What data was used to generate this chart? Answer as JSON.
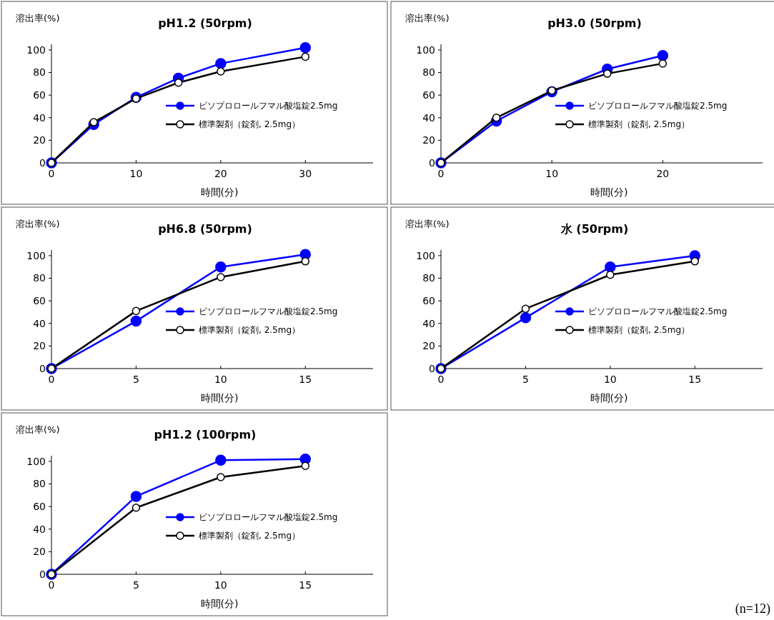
{
  "chart_data": [
    {
      "type": "line",
      "title": "pH1.2 (50rpm)",
      "xlabel": "時間(分)",
      "ylabel": "溶出率(%)",
      "xlim": [
        0,
        38
      ],
      "xticks": [
        0,
        10,
        20,
        30
      ],
      "ylim": [
        0,
        105
      ],
      "yticks": [
        0,
        20,
        40,
        60,
        80,
        100
      ],
      "marker": "circle",
      "legend": "bottom right",
      "x": [
        0,
        5,
        10,
        15,
        20,
        30
      ],
      "series": [
        {
          "name": "ビソプロロールフマル酸塩錠2.5mg",
          "color": "#0000ff",
          "values": [
            0,
            34,
            58,
            75,
            88,
            102
          ]
        },
        {
          "name": "標準製剤（錠剤, 2.5mg）",
          "color": "#000000",
          "values": [
            0,
            36,
            57,
            71,
            81,
            94
          ]
        }
      ]
    },
    {
      "type": "line",
      "title": "pH3.0 (50rpm)",
      "xlabel": "時間(分)",
      "ylabel": "溶出率(%)",
      "xlim": [
        0,
        29
      ],
      "xticks": [
        0,
        10,
        20
      ],
      "ylim": [
        0,
        105
      ],
      "yticks": [
        0,
        20,
        40,
        60,
        80,
        100
      ],
      "marker": "circle",
      "legend": "bottom right",
      "x": [
        0,
        5,
        10,
        15,
        20
      ],
      "series": [
        {
          "name": "ビソプロロールフマル酸塩錠2.5mg",
          "color": "#0000ff",
          "values": [
            0,
            37,
            63,
            83,
            95
          ]
        },
        {
          "name": "標準製剤（錠剤, 2.5mg）",
          "color": "#000000",
          "values": [
            0,
            40,
            64,
            79,
            88
          ]
        }
      ]
    },
    {
      "type": "line",
      "title": "pH6.8 (50rpm)",
      "xlabel": "時間(分)",
      "ylabel": "溶出率(%)",
      "xlim": [
        0,
        19
      ],
      "xticks": [
        0,
        5,
        10,
        15
      ],
      "ylim": [
        0,
        105
      ],
      "yticks": [
        0,
        20,
        40,
        60,
        80,
        100
      ],
      "marker": "circle",
      "legend": "bottom right",
      "x": [
        0,
        5,
        10,
        15
      ],
      "series": [
        {
          "name": "ビソプロロールフマル酸塩錠2.5mg",
          "color": "#0000ff",
          "values": [
            0,
            42,
            90,
            101
          ]
        },
        {
          "name": "標準製剤（錠剤, 2.5mg）",
          "color": "#000000",
          "values": [
            0,
            51,
            81,
            95
          ]
        }
      ]
    },
    {
      "type": "line",
      "title": "水 (50rpm)",
      "xlabel": "時間(分)",
      "ylabel": "溶出率(%)",
      "xlim": [
        0,
        19
      ],
      "xticks": [
        0,
        5,
        10,
        15
      ],
      "ylim": [
        0,
        105
      ],
      "yticks": [
        0,
        20,
        40,
        60,
        80,
        100
      ],
      "marker": "circle",
      "legend": "bottom right",
      "x": [
        0,
        5,
        10,
        15
      ],
      "series": [
        {
          "name": "ビソプロロールフマル酸塩錠2.5mg",
          "color": "#0000ff",
          "values": [
            0,
            45,
            90,
            100
          ]
        },
        {
          "name": "標準製剤（錠剤, 2.5mg）",
          "color": "#000000",
          "values": [
            0,
            53,
            83,
            95
          ]
        }
      ]
    },
    {
      "type": "line",
      "title": "pH1.2 (100rpm)",
      "xlabel": "時間(分)",
      "ylabel": "溶出率(%)",
      "xlim": [
        0,
        19
      ],
      "xticks": [
        0,
        5,
        10,
        15
      ],
      "ylim": [
        0,
        105
      ],
      "yticks": [
        0,
        20,
        40,
        60,
        80,
        100
      ],
      "marker": "circle",
      "legend": "bottom right",
      "x": [
        0,
        5,
        10,
        15
      ],
      "annotations": [
        "(n=12)"
      ],
      "series": [
        {
          "name": "ビソプロロールフマル酸塩錠2.5mg",
          "color": "#0000ff",
          "values": [
            0,
            69,
            101,
            102
          ]
        },
        {
          "name": "標準製剤（錠剤, 2.5mg）",
          "color": "#000000",
          "values": [
            0,
            59,
            86,
            96
          ]
        }
      ]
    }
  ]
}
